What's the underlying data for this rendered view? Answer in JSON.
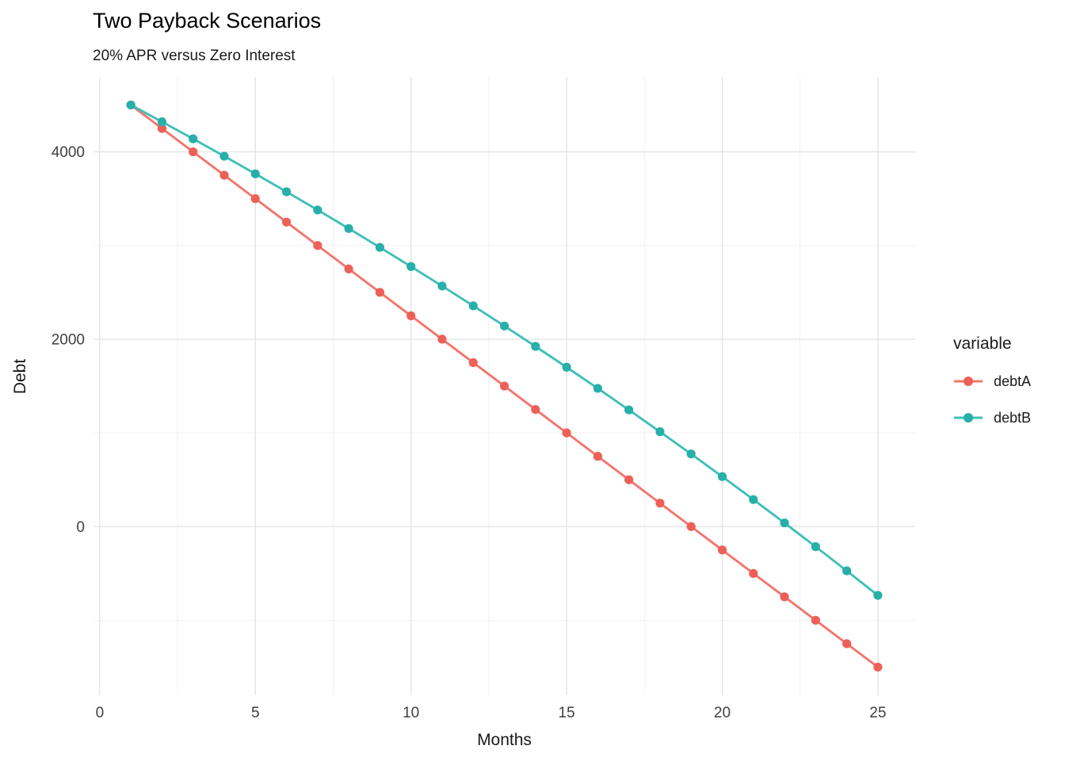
{
  "chart_data": {
    "type": "line",
    "title": "Two Payback Scenarios",
    "subtitle": "20% APR versus Zero Interest",
    "xlabel": "Months",
    "ylabel": "Debt",
    "legend_title": "variable",
    "legend_position": "right",
    "background_color": "#FFFFFF",
    "grid": {
      "show_major": true,
      "show_minor": true,
      "major_color": "#E4E4E4",
      "minor_color": "#EFEFEF"
    },
    "text_colors": {
      "title": "#000000",
      "axis_title": "#1A1A1A",
      "tick_labels": "#404040",
      "legend": "#1A1A1A"
    },
    "xlim": [
      -0.2,
      26.2
    ],
    "ylim": [
      -1800,
      4800
    ],
    "x_ticks": [
      0,
      5,
      10,
      15,
      20,
      25
    ],
    "x_minor_ticks": [
      2.5,
      7.5,
      12.5,
      17.5,
      22.5
    ],
    "y_ticks": [
      0,
      2000,
      4000
    ],
    "y_minor_ticks": [
      -1000,
      1000,
      3000
    ],
    "x": [
      1,
      2,
      3,
      4,
      5,
      6,
      7,
      8,
      9,
      10,
      11,
      12,
      13,
      14,
      15,
      16,
      17,
      18,
      19,
      20,
      21,
      22,
      23,
      24,
      25
    ],
    "series": [
      {
        "name": "debtA",
        "line_color": "#F3756C",
        "point_color": "#ED6058",
        "values": [
          4500,
          4250,
          4000,
          3750,
          3500,
          3250,
          3000,
          2750,
          2500,
          2250,
          2000,
          1750,
          1500,
          1250,
          1000,
          750,
          500,
          250,
          0,
          -250,
          -500,
          -750,
          -1000,
          -1250,
          -1500
        ]
      },
      {
        "name": "debtB",
        "line_color": "#3FBFB9",
        "point_color": "#27AFA9",
        "values": [
          4500,
          4320.8,
          4138.7,
          3953.5,
          3765.2,
          3573.8,
          3379.2,
          3181.4,
          2980.2,
          2775.7,
          2567.8,
          2356.4,
          2141.5,
          1923.1,
          1701.0,
          1475.1,
          1245.6,
          1012.1,
          774.9,
          533.6,
          288.3,
          39.0,
          -214.6,
          -472.3,
          -734.3
        ]
      }
    ]
  }
}
